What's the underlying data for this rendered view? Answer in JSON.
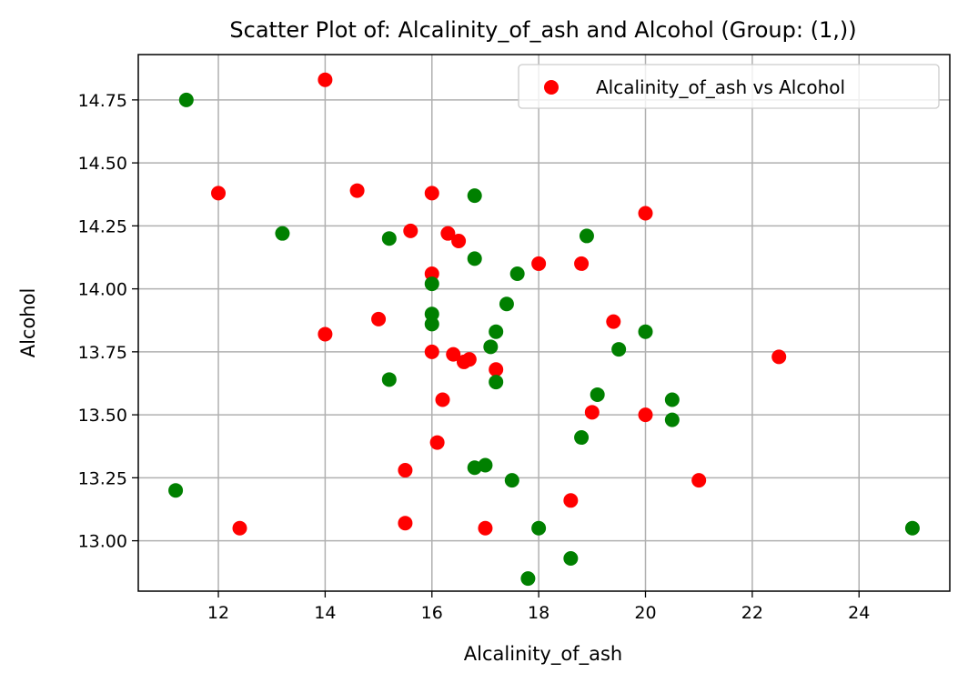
{
  "chart_data": {
    "type": "scatter",
    "title": "Scatter Plot of: Alcalinity_of_ash and Alcohol (Group: (1,))",
    "xlabel": "Alcalinity_of_ash",
    "ylabel": "Alcohol",
    "xlim": [
      10.5,
      25.7
    ],
    "ylim": [
      12.8,
      14.93
    ],
    "x_ticks": [
      12,
      14,
      16,
      18,
      20,
      22,
      24
    ],
    "y_ticks": [
      13.0,
      13.25,
      13.5,
      13.75,
      14.0,
      14.25,
      14.5,
      14.75
    ],
    "x_tick_labels": [
      "12",
      "14",
      "16",
      "18",
      "20",
      "22",
      "24"
    ],
    "y_tick_labels": [
      "13.00",
      "13.25",
      "13.50",
      "13.75",
      "14.00",
      "14.25",
      "14.50",
      "14.75"
    ],
    "grid": true,
    "legend": {
      "placement": "top-right",
      "entries": [
        {
          "label": "Alcalinity_of_ash vs Alcohol",
          "color": "#ff0000"
        }
      ]
    },
    "series": [
      {
        "color": "#ff0000",
        "points": [
          [
            14.0,
            14.83
          ],
          [
            12.0,
            14.38
          ],
          [
            14.6,
            14.39
          ],
          [
            16.0,
            14.38
          ],
          [
            20.0,
            14.3
          ],
          [
            15.6,
            14.23
          ],
          [
            16.3,
            14.22
          ],
          [
            16.5,
            14.19
          ],
          [
            18.0,
            14.1
          ],
          [
            18.8,
            14.1
          ],
          [
            16.0,
            14.06
          ],
          [
            15.0,
            13.88
          ],
          [
            19.4,
            13.87
          ],
          [
            14.0,
            13.82
          ],
          [
            16.0,
            13.75
          ],
          [
            16.4,
            13.74
          ],
          [
            22.5,
            13.73
          ],
          [
            16.7,
            13.72
          ],
          [
            16.6,
            13.71
          ],
          [
            17.2,
            13.68
          ],
          [
            16.2,
            13.56
          ],
          [
            19.0,
            13.51
          ],
          [
            20.0,
            13.5
          ],
          [
            16.1,
            13.39
          ],
          [
            15.5,
            13.28
          ],
          [
            21.0,
            13.24
          ],
          [
            18.6,
            13.16
          ],
          [
            15.5,
            13.07
          ],
          [
            12.4,
            13.05
          ],
          [
            17.0,
            13.05
          ]
        ]
      },
      {
        "color": "#008000",
        "points": [
          [
            11.4,
            14.75
          ],
          [
            16.8,
            14.37
          ],
          [
            13.2,
            14.22
          ],
          [
            18.9,
            14.21
          ],
          [
            15.2,
            14.2
          ],
          [
            16.8,
            14.12
          ],
          [
            17.6,
            14.06
          ],
          [
            16.0,
            14.02
          ],
          [
            17.4,
            13.94
          ],
          [
            16.0,
            13.9
          ],
          [
            16.0,
            13.86
          ],
          [
            17.2,
            13.83
          ],
          [
            20.0,
            13.83
          ],
          [
            17.1,
            13.77
          ],
          [
            19.5,
            13.76
          ],
          [
            15.2,
            13.64
          ],
          [
            17.2,
            13.63
          ],
          [
            19.1,
            13.58
          ],
          [
            20.5,
            13.56
          ],
          [
            20.5,
            13.48
          ],
          [
            18.8,
            13.41
          ],
          [
            17.0,
            13.3
          ],
          [
            16.8,
            13.29
          ],
          [
            17.5,
            13.24
          ],
          [
            11.2,
            13.2
          ],
          [
            18.0,
            13.05
          ],
          [
            25.0,
            13.05
          ],
          [
            18.6,
            12.93
          ],
          [
            17.8,
            12.85
          ]
        ]
      }
    ]
  }
}
